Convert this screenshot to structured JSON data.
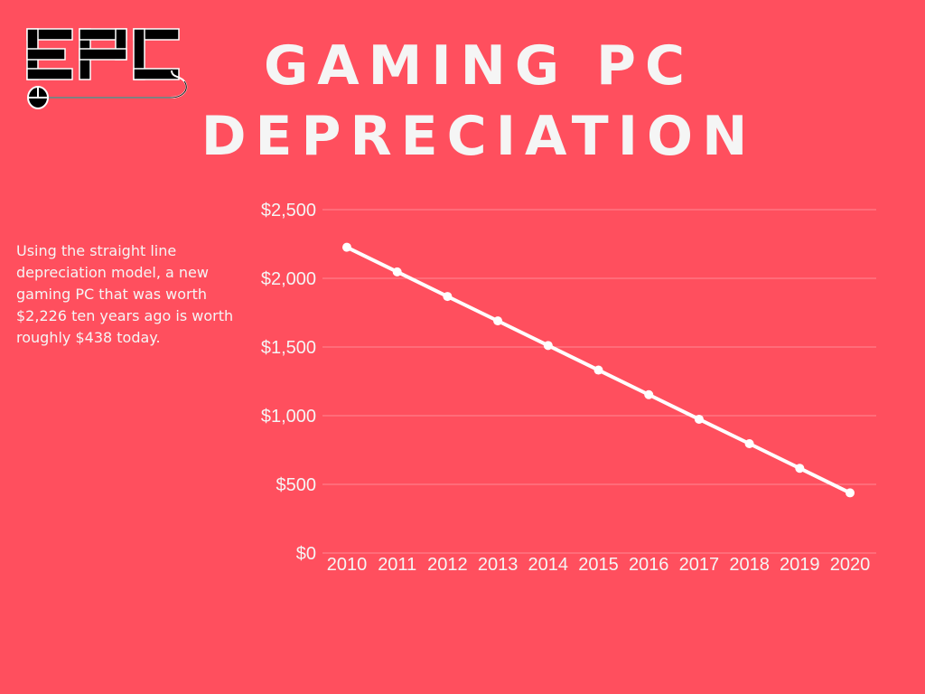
{
  "logo": {
    "text": "EPC",
    "icon": "computer-mouse-icon",
    "text_color": "#000000",
    "outline_color": "#FFFFFF"
  },
  "title": {
    "line1": "GAMING PC",
    "line2": "DEPRECIATION"
  },
  "description": "Using the straight line depreciation model, a new gaming PC that was worth $2,226 ten years ago is worth roughly $438 today.",
  "colors": {
    "background": "#FF4F5E",
    "line": "#FFFFFF",
    "text": "#F5F5F5",
    "grid": "#FF8A94"
  },
  "chart_data": {
    "type": "line",
    "title": "",
    "xlabel": "",
    "ylabel": "",
    "x": [
      "2010",
      "2011",
      "2012",
      "2013",
      "2014",
      "2015",
      "2016",
      "2017",
      "2018",
      "2019",
      "2020"
    ],
    "series": [
      {
        "values": [
          2226,
          2047,
          1868,
          1690,
          1511,
          1332,
          1153,
          974,
          796,
          617,
          438
        ]
      }
    ],
    "ylim": [
      0,
      2500
    ],
    "yticks": [
      0,
      500,
      1000,
      1500,
      2000,
      2500
    ],
    "ytick_labels": [
      "$0",
      "$500",
      "$1,000",
      "$1,500",
      "$2,000",
      "$2,500"
    ],
    "grid": true,
    "legend": "none",
    "markers": true
  }
}
